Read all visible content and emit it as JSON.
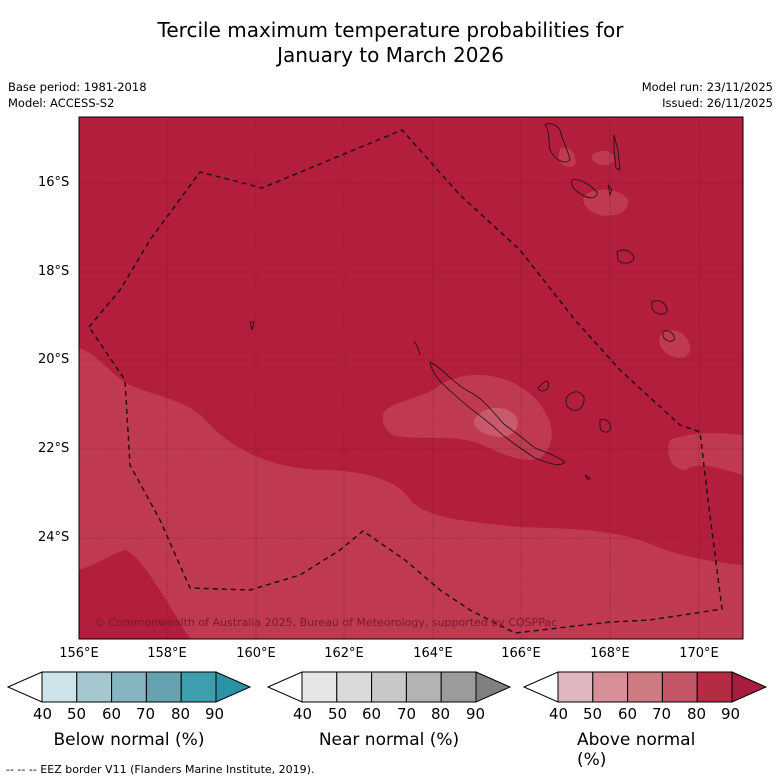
{
  "title_line1": "Tercile maximum temperature probabilities for",
  "title_line2": "January to March 2026",
  "meta_left": {
    "base_period": "Base period: 1981-2018",
    "model": "Model: ACCESS-S2"
  },
  "meta_right": {
    "model_run": "Model run: 23/11/2025",
    "issued": "Issued: 26/11/2025"
  },
  "latitude_labels": [
    "16°S",
    "18°S",
    "20°S",
    "22°S",
    "24°S"
  ],
  "longitude_labels": [
    "156°E",
    "158°E",
    "160°E",
    "162°E",
    "164°E",
    "166°E",
    "168°E",
    "170°E"
  ],
  "copyright": "© Commonwealth of Australia 2025, Bureau of Meteorology, supported by COSPPac",
  "colorbars": [
    {
      "label": "Below normal (%)",
      "ticks": [
        "40",
        "50",
        "60",
        "70",
        "80",
        "90"
      ],
      "colors": [
        "#ffffff",
        "#cde3e9",
        "#a5c7cf",
        "#86b4c0",
        "#66a3b1",
        "#3e9eae",
        "#2a93a6"
      ]
    },
    {
      "label": "Near normal (%)",
      "ticks": [
        "40",
        "50",
        "60",
        "70",
        "80",
        "90"
      ],
      "colors": [
        "#ffffff",
        "#e6e6e6",
        "#d9d9d9",
        "#c8c8c8",
        "#b3b3b3",
        "#9b9b9b",
        "#808080"
      ]
    },
    {
      "label": "Above normal (%)",
      "ticks": [
        "40",
        "50",
        "60",
        "70",
        "80",
        "90"
      ],
      "colors": [
        "#ffffff",
        "#e0b6bf",
        "#d88e97",
        "#cd7a82",
        "#c45566",
        "#b52b44",
        "#a81c3c"
      ]
    }
  ],
  "map_colors": {
    "above_80_90": "#b21e3c",
    "above_70_80": "#bf3a50",
    "above_60_70": "#c95a6b",
    "above_50_60": "#d7868f"
  },
  "footnote": "--  --  -- EEZ border V11 (Flanders Marine Institute, 2019)."
}
